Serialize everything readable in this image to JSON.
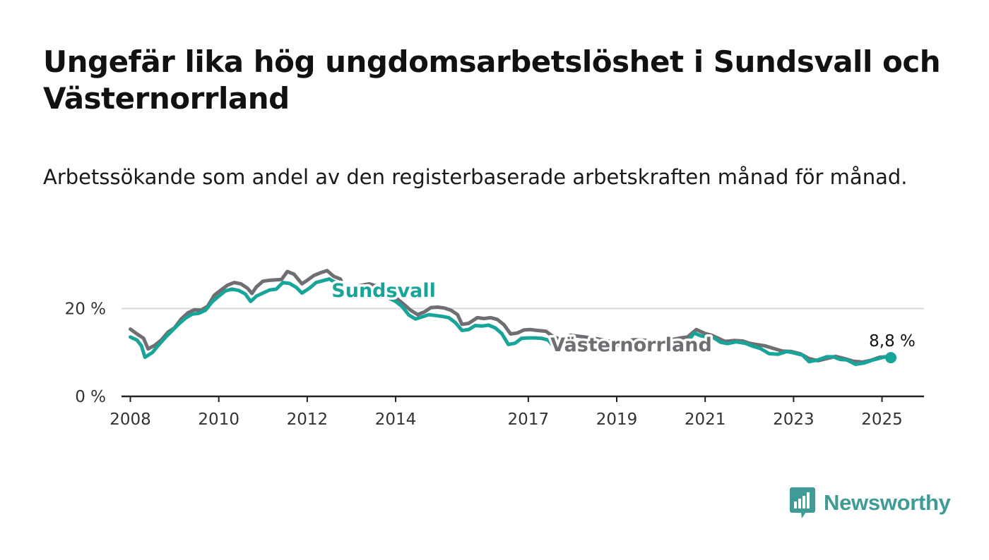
{
  "title": "Ungefär lika hög ungdomsarbetslöshet i Sundsvall och Västernorrland",
  "subtitle": "Arbetssökande som andel av den registerbaserade arbetskraften månad för månad.",
  "brand": {
    "name": "Newsworthy",
    "color": "#3f9b95",
    "icon": "bar-chart-speech-bubble-icon"
  },
  "chart_data": {
    "type": "line",
    "title": "Ungefär lika hög ungdomsarbetslöshet i Sundsvall och Västernorrland",
    "subtitle": "Arbetssökande som andel av den registerbaserade arbetskraften månad för månad.",
    "xlabel": "",
    "ylabel": "",
    "xlim": [
      2007.8,
      2025.95
    ],
    "ylim": [
      0,
      30
    ],
    "x_ticks": [
      {
        "value": 2008,
        "label": "2008"
      },
      {
        "value": 2010,
        "label": "2010"
      },
      {
        "value": 2012,
        "label": "2012"
      },
      {
        "value": 2014,
        "label": "2014"
      },
      {
        "value": 2017,
        "label": "2017"
      },
      {
        "value": 2019,
        "label": "2019"
      },
      {
        "value": 2021,
        "label": "2021"
      },
      {
        "value": 2023,
        "label": "2023"
      },
      {
        "value": 2025,
        "label": "2025"
      }
    ],
    "y_ticks": [
      {
        "value": 0,
        "label": "0 %"
      },
      {
        "value": 20,
        "label": "20 %"
      }
    ],
    "grid": true,
    "legend": "inline-labels",
    "end_label": "8,8 %",
    "series": [
      {
        "name": "Västernorrland",
        "color": "#6e6e73",
        "points": [
          [
            2008.0,
            15.3
          ],
          [
            2008.15,
            14.2
          ],
          [
            2008.3,
            13.2
          ],
          [
            2008.4,
            10.8
          ],
          [
            2008.55,
            11.6
          ],
          [
            2008.7,
            12.8
          ],
          [
            2008.85,
            14.6
          ],
          [
            2009.0,
            15.6
          ],
          [
            2009.15,
            17.6
          ],
          [
            2009.3,
            19.0
          ],
          [
            2009.45,
            19.7
          ],
          [
            2009.6,
            19.6
          ],
          [
            2009.75,
            20.5
          ],
          [
            2009.9,
            23.0
          ],
          [
            2010.05,
            24.2
          ],
          [
            2010.2,
            25.3
          ],
          [
            2010.35,
            25.9
          ],
          [
            2010.5,
            25.6
          ],
          [
            2010.65,
            24.6
          ],
          [
            2010.75,
            23.4
          ],
          [
            2010.85,
            24.9
          ],
          [
            2011.0,
            26.2
          ],
          [
            2011.15,
            26.4
          ],
          [
            2011.3,
            26.5
          ],
          [
            2011.42,
            26.6
          ],
          [
            2011.55,
            28.4
          ],
          [
            2011.7,
            27.8
          ],
          [
            2011.88,
            25.6
          ],
          [
            2012.0,
            26.4
          ],
          [
            2012.15,
            27.5
          ],
          [
            2012.3,
            28.1
          ],
          [
            2012.45,
            28.6
          ],
          [
            2012.6,
            27.3
          ],
          [
            2012.75,
            26.7
          ],
          [
            2012.9,
            23.3
          ],
          [
            2013.0,
            22.8
          ],
          [
            2013.2,
            25.2
          ],
          [
            2013.4,
            25.6
          ],
          [
            2013.6,
            25.0
          ],
          [
            2013.8,
            23.8
          ],
          [
            2014.0,
            22.5
          ],
          [
            2014.2,
            20.8
          ],
          [
            2014.35,
            19.5
          ],
          [
            2014.5,
            18.6
          ],
          [
            2014.65,
            19.2
          ],
          [
            2014.8,
            20.2
          ],
          [
            2014.95,
            20.3
          ],
          [
            2015.1,
            20.1
          ],
          [
            2015.25,
            19.6
          ],
          [
            2015.4,
            18.6
          ],
          [
            2015.5,
            16.4
          ],
          [
            2015.65,
            16.6
          ],
          [
            2015.85,
            17.9
          ],
          [
            2016.0,
            17.7
          ],
          [
            2016.15,
            17.9
          ],
          [
            2016.3,
            17.5
          ],
          [
            2016.45,
            16.3
          ],
          [
            2016.6,
            14.2
          ],
          [
            2016.75,
            14.4
          ],
          [
            2016.9,
            15.1
          ],
          [
            2017.05,
            15.2
          ],
          [
            2017.2,
            15.0
          ],
          [
            2017.4,
            14.8
          ],
          [
            2017.55,
            13.7
          ],
          [
            2017.75,
            12.8
          ],
          [
            2017.95,
            13.9
          ],
          [
            2018.2,
            13.6
          ],
          [
            2018.5,
            13.2
          ],
          [
            2018.8,
            12.6
          ],
          [
            2019.1,
            12.4
          ],
          [
            2019.4,
            12.9
          ],
          [
            2019.6,
            12.8
          ],
          [
            2019.8,
            12.6
          ],
          [
            2020.0,
            12.4
          ],
          [
            2020.2,
            12.8
          ],
          [
            2020.45,
            13.3
          ],
          [
            2020.6,
            13.5
          ],
          [
            2020.8,
            15.2
          ],
          [
            2021.0,
            14.3
          ],
          [
            2021.15,
            13.9
          ],
          [
            2021.3,
            13.2
          ],
          [
            2021.45,
            12.5
          ],
          [
            2021.65,
            12.7
          ],
          [
            2021.85,
            12.6
          ],
          [
            2022.0,
            12.1
          ],
          [
            2022.15,
            11.8
          ],
          [
            2022.35,
            11.5
          ],
          [
            2022.55,
            10.9
          ],
          [
            2022.75,
            10.3
          ],
          [
            2022.95,
            10.2
          ],
          [
            2023.15,
            9.7
          ],
          [
            2023.35,
            8.6
          ],
          [
            2023.55,
            8.1
          ],
          [
            2023.75,
            8.6
          ],
          [
            2023.95,
            9.1
          ],
          [
            2024.15,
            8.6
          ],
          [
            2024.35,
            8.0
          ],
          [
            2024.55,
            7.8
          ],
          [
            2024.75,
            8.2
          ],
          [
            2024.95,
            8.9
          ],
          [
            2025.1,
            9.0
          ]
        ]
      },
      {
        "name": "Sundsvall",
        "color": "#17a59a",
        "points": [
          [
            2008.0,
            13.5
          ],
          [
            2008.15,
            12.8
          ],
          [
            2008.25,
            11.5
          ],
          [
            2008.33,
            8.9
          ],
          [
            2008.5,
            10.0
          ],
          [
            2008.65,
            11.8
          ],
          [
            2008.8,
            13.5
          ],
          [
            2008.95,
            15.0
          ],
          [
            2009.1,
            16.5
          ],
          [
            2009.25,
            17.8
          ],
          [
            2009.4,
            18.7
          ],
          [
            2009.55,
            18.9
          ],
          [
            2009.7,
            19.6
          ],
          [
            2009.85,
            21.5
          ],
          [
            2010.0,
            22.8
          ],
          [
            2010.15,
            24.0
          ],
          [
            2010.3,
            24.4
          ],
          [
            2010.45,
            24.1
          ],
          [
            2010.6,
            23.3
          ],
          [
            2010.72,
            21.6
          ],
          [
            2010.85,
            22.8
          ],
          [
            2011.0,
            23.5
          ],
          [
            2011.15,
            24.2
          ],
          [
            2011.3,
            24.4
          ],
          [
            2011.45,
            25.9
          ],
          [
            2011.6,
            25.7
          ],
          [
            2011.75,
            24.8
          ],
          [
            2011.88,
            23.5
          ],
          [
            2012.05,
            24.6
          ],
          [
            2012.2,
            25.9
          ],
          [
            2012.35,
            26.3
          ],
          [
            2012.5,
            26.7
          ],
          [
            2012.6,
            26.1
          ],
          [
            2012.72,
            25.7
          ],
          [
            2012.85,
            23.5
          ],
          [
            2012.92,
            22.5
          ],
          [
            2013.2,
            22.9
          ],
          [
            2013.5,
            23.2
          ],
          [
            2013.8,
            22.6
          ],
          [
            2014.0,
            21.6
          ],
          [
            2014.15,
            20.4
          ],
          [
            2014.3,
            18.5
          ],
          [
            2014.45,
            17.6
          ],
          [
            2014.6,
            18.1
          ],
          [
            2014.75,
            18.6
          ],
          [
            2014.9,
            18.4
          ],
          [
            2015.05,
            18.2
          ],
          [
            2015.2,
            17.9
          ],
          [
            2015.35,
            16.8
          ],
          [
            2015.5,
            15.0
          ],
          [
            2015.65,
            15.2
          ],
          [
            2015.8,
            16.1
          ],
          [
            2015.95,
            16.0
          ],
          [
            2016.1,
            16.2
          ],
          [
            2016.25,
            15.6
          ],
          [
            2016.4,
            14.3
          ],
          [
            2016.55,
            11.8
          ],
          [
            2016.7,
            12.1
          ],
          [
            2016.85,
            13.2
          ],
          [
            2017.0,
            13.3
          ],
          [
            2017.15,
            13.3
          ],
          [
            2017.3,
            13.2
          ],
          [
            2017.45,
            12.8
          ],
          [
            2017.6,
            11.0
          ],
          [
            2017.8,
            11.3
          ],
          [
            2018.0,
            12.4
          ],
          [
            2018.3,
            12.2
          ],
          [
            2018.6,
            11.9
          ],
          [
            2018.9,
            11.8
          ],
          [
            2019.2,
            11.6
          ],
          [
            2019.5,
            11.8
          ],
          [
            2019.8,
            12.1
          ],
          [
            2020.1,
            12.4
          ],
          [
            2020.4,
            12.7
          ],
          [
            2020.6,
            12.3
          ],
          [
            2020.75,
            14.4
          ],
          [
            2020.9,
            13.8
          ],
          [
            2021.05,
            13.5
          ],
          [
            2021.2,
            13.3
          ],
          [
            2021.35,
            12.3
          ],
          [
            2021.5,
            12.0
          ],
          [
            2021.7,
            12.4
          ],
          [
            2021.9,
            12.1
          ],
          [
            2022.05,
            11.5
          ],
          [
            2022.25,
            10.9
          ],
          [
            2022.45,
            9.7
          ],
          [
            2022.65,
            9.6
          ],
          [
            2022.85,
            10.2
          ],
          [
            2023.0,
            9.9
          ],
          [
            2023.2,
            9.4
          ],
          [
            2023.35,
            7.9
          ],
          [
            2023.55,
            8.3
          ],
          [
            2023.75,
            9.0
          ],
          [
            2023.9,
            9.0
          ],
          [
            2024.05,
            8.4
          ],
          [
            2024.2,
            8.3
          ],
          [
            2024.4,
            7.3
          ],
          [
            2024.6,
            7.6
          ],
          [
            2024.8,
            8.3
          ],
          [
            2025.0,
            8.8
          ],
          [
            2025.12,
            9.1
          ],
          [
            2025.2,
            8.8
          ]
        ]
      }
    ]
  }
}
